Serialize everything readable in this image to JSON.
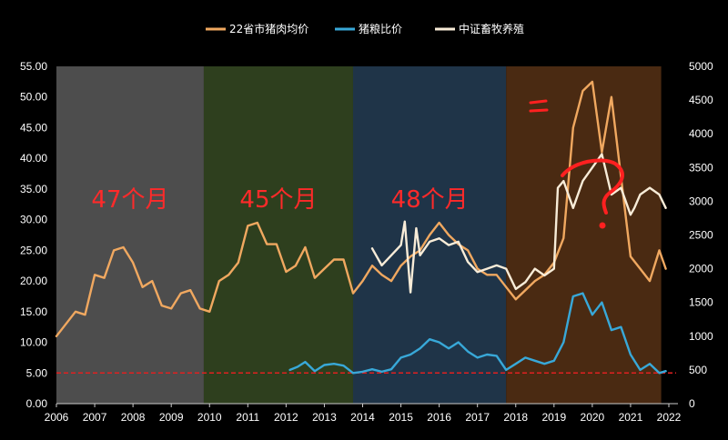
{
  "chart_data": {
    "type": "line",
    "title": "",
    "xlabel": "",
    "ylabel": "",
    "x_ticks": [
      "2006",
      "2007",
      "2008",
      "2009",
      "2010",
      "2011",
      "2012",
      "2013",
      "2014",
      "2015",
      "2016",
      "2017",
      "2018",
      "2019",
      "2020",
      "2021",
      "2022"
    ],
    "ylim_left": [
      0,
      55
    ],
    "ylim_right": [
      0,
      5000
    ],
    "left_ticks": [
      "0.00",
      "5.00",
      "10.00",
      "15.00",
      "20.00",
      "25.00",
      "30.00",
      "35.00",
      "40.00",
      "45.00",
      "50.00",
      "55.00"
    ],
    "right_ticks": [
      "0",
      "500",
      "1000",
      "1500",
      "2000",
      "2500",
      "3000",
      "3500",
      "4000",
      "4500",
      "5000"
    ],
    "legend_position": "top",
    "reference_line": {
      "axis": "left",
      "value": 5.0,
      "color": "#e02020",
      "style": "dashed"
    },
    "cycles": [
      {
        "label": "47个月",
        "x_start": 2006.0,
        "x_end": 2009.85,
        "color": "#4d4d4d"
      },
      {
        "label": "45个月",
        "x_start": 2009.85,
        "x_end": 2013.75,
        "color": "#2e3f1e"
      },
      {
        "label": "48个月",
        "x_start": 2013.75,
        "x_end": 2017.75,
        "color": "#1f3448"
      },
      {
        "label": "",
        "x_start": 2017.75,
        "x_end": 2021.8,
        "color": "#4a2a12"
      }
    ],
    "annotations": [
      "?"
    ],
    "series": [
      {
        "name": "22省市猪肉均价",
        "axis": "left",
        "color": "#f0a860",
        "x": [
          2006.0,
          2006.25,
          2006.5,
          2006.75,
          2007.0,
          2007.25,
          2007.5,
          2007.75,
          2008.0,
          2008.25,
          2008.5,
          2008.75,
          2009.0,
          2009.25,
          2009.5,
          2009.75,
          2010.0,
          2010.25,
          2010.5,
          2010.75,
          2011.0,
          2011.25,
          2011.5,
          2011.75,
          2012.0,
          2012.25,
          2012.5,
          2012.75,
          2013.0,
          2013.25,
          2013.5,
          2013.75,
          2014.0,
          2014.25,
          2014.5,
          2014.75,
          2015.0,
          2015.25,
          2015.5,
          2015.75,
          2016.0,
          2016.25,
          2016.5,
          2016.75,
          2017.0,
          2017.25,
          2017.5,
          2017.75,
          2018.0,
          2018.25,
          2018.5,
          2018.75,
          2019.0,
          2019.25,
          2019.5,
          2019.75,
          2020.0,
          2020.25,
          2020.5,
          2020.75,
          2021.0,
          2021.25,
          2021.5,
          2021.75,
          2021.92
        ],
        "values": [
          11.0,
          13.0,
          15.0,
          14.5,
          21.0,
          20.5,
          25.0,
          25.5,
          23.0,
          19.0,
          20.0,
          16.0,
          15.5,
          18.0,
          18.5,
          15.5,
          15.0,
          20.0,
          21.0,
          23.0,
          29.0,
          29.5,
          26.0,
          26.0,
          21.5,
          22.5,
          25.5,
          20.5,
          22.0,
          23.5,
          23.5,
          18.0,
          20.0,
          22.5,
          21.0,
          20.0,
          22.5,
          24.0,
          25.0,
          27.5,
          29.5,
          27.5,
          26.0,
          25.0,
          22.0,
          21.0,
          21.0,
          19.0,
          17.0,
          18.5,
          20.0,
          21.0,
          23.0,
          27.0,
          45.0,
          51.0,
          52.5,
          41.0,
          50.0,
          37.0,
          24.0,
          22.0,
          20.0,
          25.0,
          22.0
        ]
      },
      {
        "name": "猪粮比价",
        "axis": "left",
        "color": "#38a8d8",
        "x": [
          2012.1,
          2012.3,
          2012.5,
          2012.75,
          2013.0,
          2013.25,
          2013.5,
          2013.75,
          2014.0,
          2014.25,
          2014.5,
          2014.75,
          2015.0,
          2015.25,
          2015.5,
          2015.75,
          2016.0,
          2016.25,
          2016.5,
          2016.75,
          2017.0,
          2017.25,
          2017.5,
          2017.75,
          2018.0,
          2018.25,
          2018.5,
          2018.75,
          2019.0,
          2019.25,
          2019.5,
          2019.75,
          2020.0,
          2020.25,
          2020.5,
          2020.75,
          2021.0,
          2021.25,
          2021.5,
          2021.75,
          2021.92
        ],
        "values": [
          5.5,
          6.0,
          6.8,
          5.3,
          6.3,
          6.5,
          6.2,
          5.0,
          5.2,
          5.6,
          5.2,
          5.6,
          7.5,
          8.0,
          9.0,
          10.5,
          10.0,
          9.0,
          10.0,
          8.5,
          7.5,
          8.0,
          7.8,
          5.5,
          6.5,
          7.5,
          7.0,
          6.5,
          7.0,
          10.0,
          17.5,
          18.0,
          14.5,
          16.5,
          12.0,
          12.5,
          8.0,
          5.5,
          6.5,
          5.0,
          5.3
        ]
      },
      {
        "name": "中证畜牧养殖",
        "axis": "right",
        "color": "#f8ecd8",
        "x": [
          2014.25,
          2014.5,
          2014.75,
          2015.0,
          2015.1,
          2015.25,
          2015.4,
          2015.5,
          2015.75,
          2016.0,
          2016.25,
          2016.5,
          2016.75,
          2017.0,
          2017.25,
          2017.5,
          2017.75,
          2018.0,
          2018.25,
          2018.5,
          2018.75,
          2019.0,
          2019.1,
          2019.25,
          2019.5,
          2019.75,
          2020.0,
          2020.25,
          2020.5,
          2020.75,
          2021.0,
          2021.1,
          2021.25,
          2021.5,
          2021.75,
          2021.92
        ],
        "values": [
          2300,
          2050,
          2200,
          2350,
          2700,
          1650,
          2600,
          2200,
          2400,
          2450,
          2350,
          2400,
          2100,
          1950,
          2000,
          2050,
          2000,
          1700,
          1800,
          2000,
          1900,
          2000,
          3200,
          3300,
          2900,
          3300,
          3500,
          3700,
          3100,
          3200,
          2800,
          2900,
          3100,
          3200,
          3100,
          2900
        ]
      }
    ]
  }
}
